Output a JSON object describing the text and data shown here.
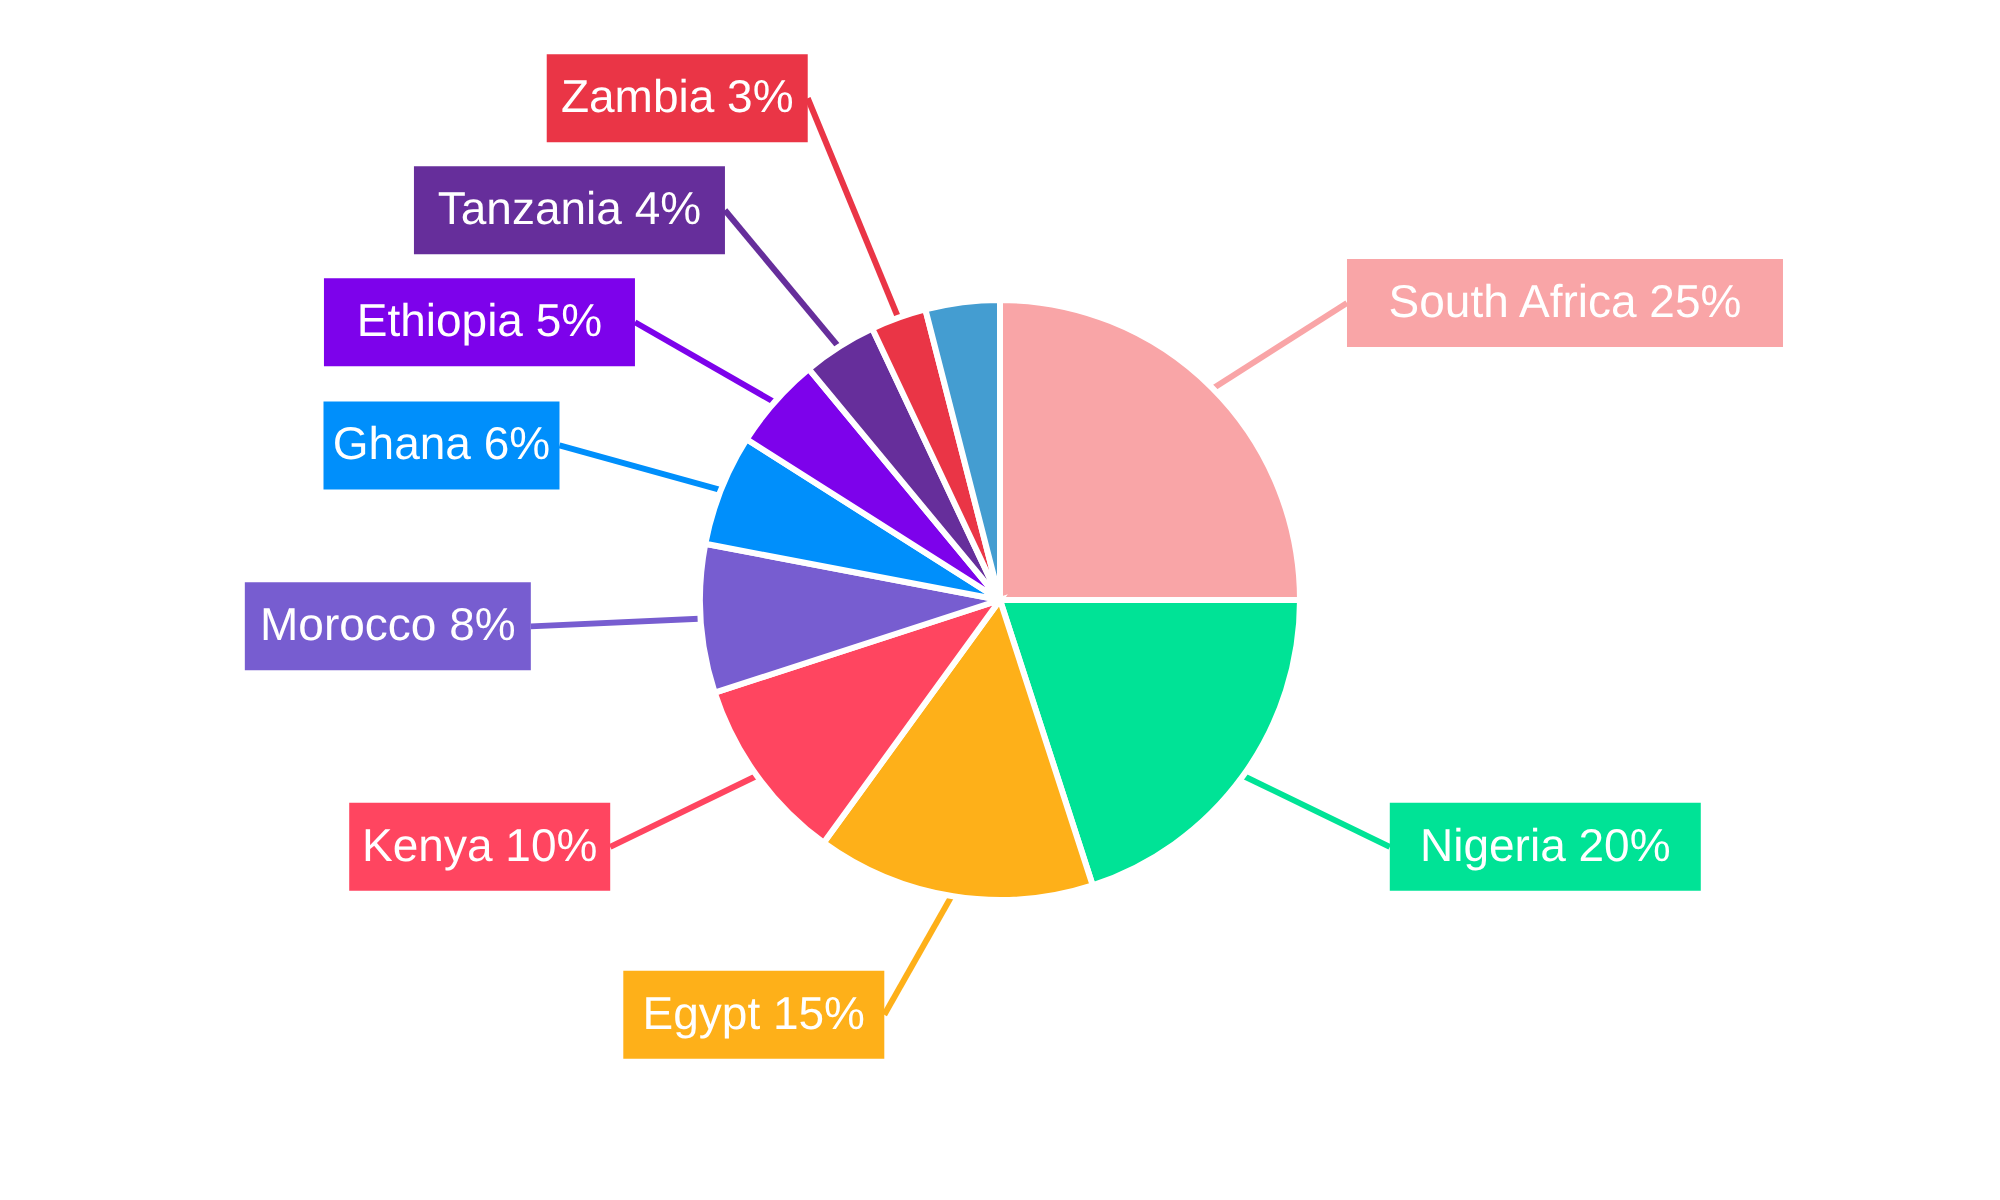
{
  "chart_data": {
    "type": "pie",
    "categories": [
      "South Africa",
      "Nigeria",
      "Egypt",
      "Kenya",
      "Morocco",
      "Ghana",
      "Ethiopia",
      "Tanzania",
      "Zambia",
      null
    ],
    "values": [
      25,
      20,
      15,
      10,
      8,
      6,
      5,
      4,
      3,
      4
    ],
    "value_labels": [
      "25%",
      "20%",
      "15%",
      "10%",
      "8%",
      "6%",
      "5%",
      "4%",
      "3%",
      null
    ],
    "colors": [
      "#f9a5a7",
      "#00e396",
      "#feb019",
      "#ff4560",
      "#775dd0",
      "#008ffb",
      "#7d02eb",
      "#662e9b",
      "#ea3546",
      "#449dd1"
    ]
  }
}
